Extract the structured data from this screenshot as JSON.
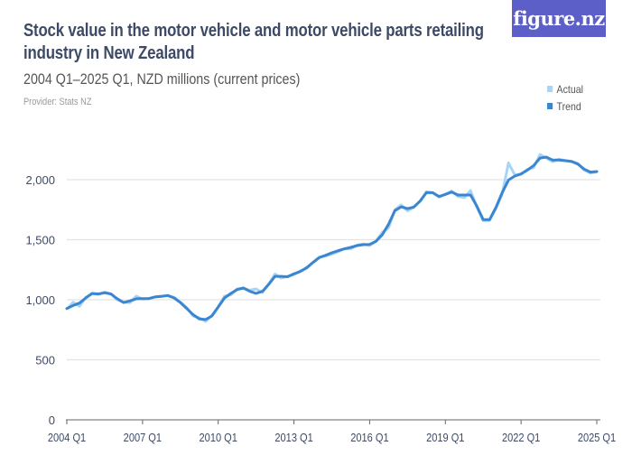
{
  "header": {
    "title": "Stock value in the motor vehicle and motor vehicle parts retailing industry in New Zealand",
    "subtitle": "2004 Q1–2025 Q1, NZD millions (current prices)",
    "provider": "Provider: Stats NZ",
    "logo_text": "figure.nz"
  },
  "colors": {
    "actual": "#a8d4f7",
    "trend": "#3b86d0",
    "logo": "#5b5fc7",
    "grid": "#e3e3e3"
  },
  "chart_data": {
    "type": "line",
    "title": "Stock value in the motor vehicle and motor vehicle parts retailing industry in New Zealand",
    "subtitle": "2004 Q1–2025 Q1, NZD millions (current prices)",
    "xlabel": "",
    "ylabel": "",
    "ylim": [
      0,
      2200
    ],
    "yticks": [
      0,
      500,
      1000,
      1500,
      2000
    ],
    "ytick_labels": [
      "0",
      "500",
      "1,000",
      "1,500",
      "2,000"
    ],
    "xtick_labels": [
      "2004 Q1",
      "2007 Q1",
      "2010 Q1",
      "2013 Q1",
      "2016 Q1",
      "2019 Q1",
      "2022 Q1",
      "2025 Q1"
    ],
    "grid": true,
    "legend": "top-right",
    "x": [
      "2004Q1",
      "2004Q2",
      "2004Q3",
      "2004Q4",
      "2005Q1",
      "2005Q2",
      "2005Q3",
      "2005Q4",
      "2006Q1",
      "2006Q2",
      "2006Q3",
      "2006Q4",
      "2007Q1",
      "2007Q2",
      "2007Q3",
      "2007Q4",
      "2008Q1",
      "2008Q2",
      "2008Q3",
      "2008Q4",
      "2009Q1",
      "2009Q2",
      "2009Q3",
      "2009Q4",
      "2010Q1",
      "2010Q2",
      "2010Q3",
      "2010Q4",
      "2011Q1",
      "2011Q2",
      "2011Q3",
      "2011Q4",
      "2012Q1",
      "2012Q2",
      "2012Q3",
      "2012Q4",
      "2013Q1",
      "2013Q2",
      "2013Q3",
      "2013Q4",
      "2014Q1",
      "2014Q2",
      "2014Q3",
      "2014Q4",
      "2015Q1",
      "2015Q2",
      "2015Q3",
      "2015Q4",
      "2016Q1",
      "2016Q2",
      "2016Q3",
      "2016Q4",
      "2017Q1",
      "2017Q2",
      "2017Q3",
      "2017Q4",
      "2018Q1",
      "2018Q2",
      "2018Q3",
      "2018Q4",
      "2019Q1",
      "2019Q2",
      "2019Q3",
      "2019Q4",
      "2020Q1",
      "2020Q2",
      "2020Q3",
      "2020Q4",
      "2021Q1",
      "2021Q2",
      "2021Q3",
      "2021Q4",
      "2022Q1",
      "2022Q2",
      "2022Q3",
      "2022Q4",
      "2023Q1",
      "2023Q2",
      "2023Q3",
      "2023Q4",
      "2024Q1",
      "2024Q2",
      "2024Q3",
      "2024Q4",
      "2025Q1"
    ],
    "series": [
      {
        "name": "Actual",
        "values": [
          920,
          980,
          945,
          1020,
          1050,
          1045,
          1065,
          1050,
          1000,
          980,
          975,
          1030,
          1005,
          1010,
          1025,
          1030,
          1035,
          1020,
          980,
          935,
          865,
          850,
          820,
          870,
          940,
          1030,
          1040,
          1090,
          1095,
          1080,
          1090,
          1060,
          1130,
          1215,
          1180,
          1195,
          1210,
          1240,
          1260,
          1310,
          1355,
          1365,
          1380,
          1400,
          1425,
          1425,
          1455,
          1465,
          1450,
          1490,
          1560,
          1600,
          1750,
          1790,
          1740,
          1770,
          1820,
          1900,
          1890,
          1855,
          1880,
          1905,
          1860,
          1850,
          1910,
          1770,
          1660,
          1660,
          1760,
          1880,
          2140,
          2040,
          2045,
          2085,
          2100,
          2210,
          2180,
          2150,
          2170,
          2160,
          2150,
          2135,
          2080,
          2055,
          2065
        ]
      },
      {
        "name": "Trend",
        "values": [
          927,
          952,
          972,
          1015,
          1053,
          1048,
          1058,
          1048,
          1008,
          977,
          990,
          1008,
          1010,
          1010,
          1023,
          1028,
          1035,
          1015,
          977,
          927,
          877,
          840,
          835,
          865,
          940,
          1015,
          1053,
          1085,
          1098,
          1070,
          1053,
          1070,
          1128,
          1195,
          1195,
          1192,
          1216,
          1235,
          1266,
          1310,
          1350,
          1370,
          1391,
          1408,
          1424,
          1436,
          1451,
          1459,
          1461,
          1486,
          1541,
          1629,
          1742,
          1774,
          1759,
          1772,
          1822,
          1892,
          1892,
          1860,
          1877,
          1897,
          1872,
          1872,
          1872,
          1779,
          1667,
          1667,
          1767,
          1892,
          1997,
          2030,
          2047,
          2080,
          2118,
          2180,
          2188,
          2163,
          2163,
          2158,
          2153,
          2130,
          2088,
          2063,
          2068
        ]
      }
    ]
  }
}
